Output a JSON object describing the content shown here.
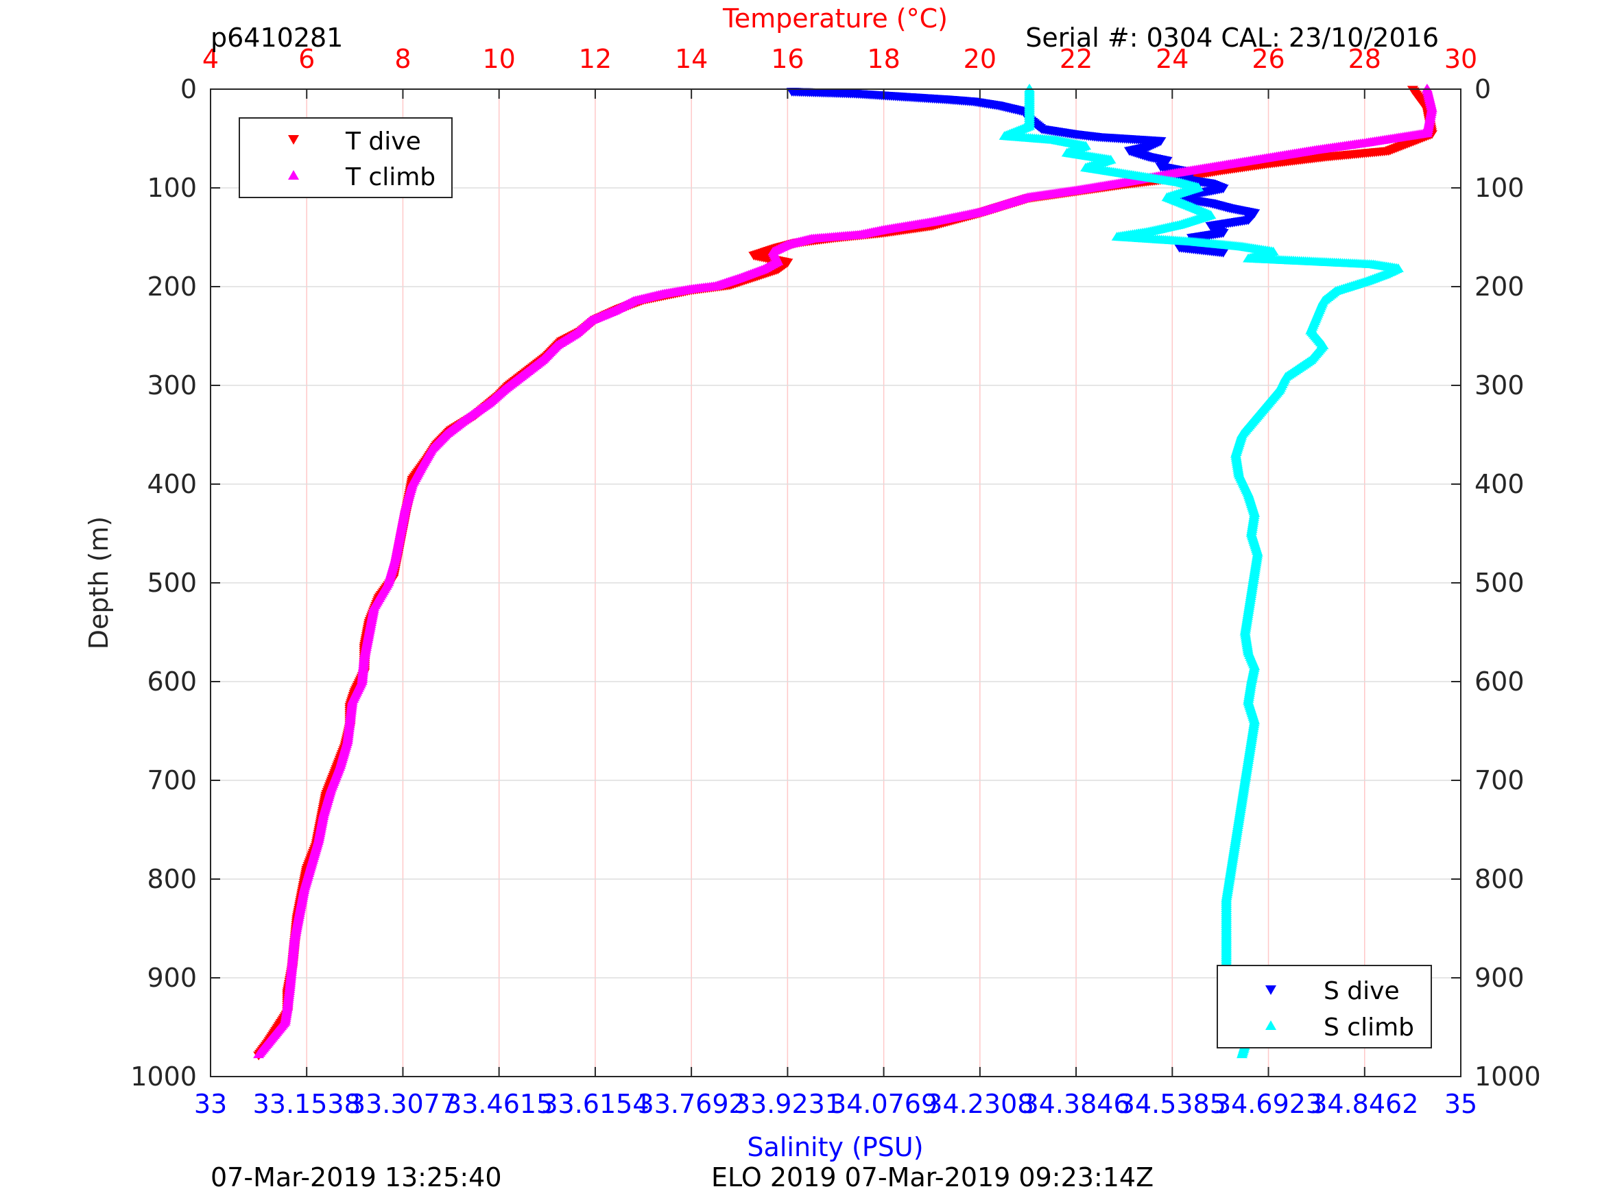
{
  "header": {
    "top_left": "p6410281",
    "top_right": "Serial #: 0304  CAL: 23/10/2016",
    "bottom_left": "07-Mar-2019 13:25:40",
    "bottom_center": "ELO 2019 07-Mar-2019 09:23:14Z"
  },
  "colors": {
    "t_dive": "#ff0000",
    "t_climb": "#ff00ff",
    "s_dive": "#0000ff",
    "s_climb": "#00ffff",
    "temp_axis": "#ff0000",
    "sal_axis": "#0000ff",
    "grid_temp": "#ffc8c8",
    "grid_depth": "#dddddd"
  },
  "chart_data": {
    "type": "scatter",
    "y_axis": {
      "label": "Depth (m)",
      "range": [
        0,
        1000
      ],
      "reversed": true,
      "ticks": [
        "0",
        "100",
        "200",
        "300",
        "400",
        "500",
        "600",
        "700",
        "800",
        "900",
        "1000"
      ]
    },
    "x_top": {
      "label": "Temperature (°C)",
      "range": [
        4,
        30
      ],
      "ticks": [
        "4",
        "6",
        "8",
        "10",
        "12",
        "14",
        "16",
        "18",
        "20",
        "22",
        "24",
        "26",
        "28",
        "30"
      ]
    },
    "x_bottom": {
      "label": "Salinity (PSU)",
      "range": [
        33,
        35
      ],
      "ticks": [
        "33",
        "33.1538",
        "33.3077",
        "33.4615",
        "33.6154",
        "33.7692",
        "33.9231",
        "34.0769",
        "34.2308",
        "34.3846",
        "34.5385",
        "34.6923",
        "34.8462",
        "35"
      ]
    },
    "grid": "on",
    "legend_temp": {
      "placement": "top-left",
      "entries": [
        {
          "label": "T dive",
          "marker": "triangle-down"
        },
        {
          "label": "T climb",
          "marker": "triangle-up"
        }
      ]
    },
    "legend_sal": {
      "placement": "bottom-right",
      "entries": [
        {
          "label": "S dive",
          "marker": "triangle-down"
        },
        {
          "label": "S climb",
          "marker": "triangle-up"
        }
      ]
    },
    "series": [
      {
        "name": "T dive",
        "axis": "temperature",
        "points": [
          [
            29.0,
            0
          ],
          [
            29.3,
            20
          ],
          [
            29.4,
            45
          ],
          [
            28.5,
            62
          ],
          [
            27.2,
            68
          ],
          [
            26.0,
            75
          ],
          [
            25.0,
            82
          ],
          [
            24.0,
            90
          ],
          [
            23.0,
            96
          ],
          [
            22.0,
            103
          ],
          [
            21.0,
            110
          ],
          [
            20.0,
            125
          ],
          [
            19.0,
            138
          ],
          [
            18.0,
            145
          ],
          [
            17.0,
            150
          ],
          [
            16.2,
            155
          ],
          [
            15.8,
            160
          ],
          [
            15.3,
            168
          ],
          [
            16.0,
            175
          ],
          [
            15.8,
            182
          ],
          [
            15.3,
            190
          ],
          [
            14.8,
            198
          ],
          [
            14.0,
            203
          ],
          [
            13.5,
            208
          ],
          [
            13.0,
            213
          ],
          [
            12.5,
            222
          ],
          [
            12.0,
            233
          ],
          [
            11.7,
            245
          ],
          [
            11.3,
            255
          ],
          [
            11.0,
            270
          ],
          [
            10.6,
            285
          ],
          [
            10.2,
            300
          ],
          [
            10.0,
            310
          ],
          [
            9.5,
            330
          ],
          [
            9.0,
            345
          ],
          [
            8.7,
            360
          ],
          [
            8.5,
            375
          ],
          [
            8.2,
            395
          ],
          [
            8.1,
            420
          ],
          [
            8.0,
            445
          ],
          [
            7.9,
            470
          ],
          [
            7.8,
            495
          ],
          [
            7.5,
            515
          ],
          [
            7.3,
            540
          ],
          [
            7.2,
            565
          ],
          [
            7.2,
            590
          ],
          [
            7.0,
            610
          ],
          [
            6.9,
            625
          ],
          [
            6.9,
            645
          ],
          [
            6.8,
            665
          ],
          [
            6.6,
            690
          ],
          [
            6.4,
            715
          ],
          [
            6.3,
            740
          ],
          [
            6.2,
            765
          ],
          [
            6.0,
            790
          ],
          [
            5.9,
            815
          ],
          [
            5.8,
            840
          ],
          [
            5.75,
            865
          ],
          [
            5.7,
            890
          ],
          [
            5.6,
            915
          ],
          [
            5.6,
            935
          ],
          [
            5.4,
            950
          ],
          [
            5.2,
            965
          ],
          [
            5.0,
            978
          ]
        ]
      },
      {
        "name": "T climb",
        "axis": "temperature",
        "points": [
          [
            29.3,
            0
          ],
          [
            29.4,
            20
          ],
          [
            29.3,
            45
          ],
          [
            28.0,
            55
          ],
          [
            27.0,
            62
          ],
          [
            26.0,
            70
          ],
          [
            25.0,
            78
          ],
          [
            24.0,
            86
          ],
          [
            23.0,
            95
          ],
          [
            22.0,
            103
          ],
          [
            21.0,
            110
          ],
          [
            20.0,
            125
          ],
          [
            19.0,
            135
          ],
          [
            18.0,
            143
          ],
          [
            17.5,
            148
          ],
          [
            16.5,
            152
          ],
          [
            16.0,
            158
          ],
          [
            15.7,
            165
          ],
          [
            15.8,
            175
          ],
          [
            15.5,
            183
          ],
          [
            15.0,
            192
          ],
          [
            14.5,
            200
          ],
          [
            14.0,
            203
          ],
          [
            13.4,
            208
          ],
          [
            12.8,
            215
          ],
          [
            12.4,
            225
          ],
          [
            11.9,
            235
          ],
          [
            11.6,
            248
          ],
          [
            11.2,
            260
          ],
          [
            10.9,
            275
          ],
          [
            10.5,
            290
          ],
          [
            10.1,
            305
          ],
          [
            9.8,
            318
          ],
          [
            9.3,
            335
          ],
          [
            8.9,
            350
          ],
          [
            8.6,
            365
          ],
          [
            8.4,
            382
          ],
          [
            8.2,
            400
          ],
          [
            8.05,
            425
          ],
          [
            7.95,
            450
          ],
          [
            7.85,
            475
          ],
          [
            7.7,
            500
          ],
          [
            7.4,
            525
          ],
          [
            7.3,
            550
          ],
          [
            7.2,
            575
          ],
          [
            7.15,
            600
          ],
          [
            6.95,
            620
          ],
          [
            6.9,
            640
          ],
          [
            6.85,
            660
          ],
          [
            6.7,
            685
          ],
          [
            6.5,
            710
          ],
          [
            6.35,
            735
          ],
          [
            6.25,
            760
          ],
          [
            6.1,
            785
          ],
          [
            5.95,
            810
          ],
          [
            5.85,
            835
          ],
          [
            5.75,
            860
          ],
          [
            5.7,
            885
          ],
          [
            5.65,
            910
          ],
          [
            5.6,
            930
          ],
          [
            5.55,
            945
          ],
          [
            5.3,
            960
          ],
          [
            5.1,
            972
          ],
          [
            5.0,
            978
          ]
        ]
      },
      {
        "name": "S dive",
        "axis": "salinity",
        "points": [
          [
            33.93,
            2
          ],
          [
            33.98,
            3
          ],
          [
            34.03,
            4
          ],
          [
            34.08,
            6
          ],
          [
            34.13,
            8
          ],
          [
            34.18,
            10
          ],
          [
            34.22,
            12
          ],
          [
            34.26,
            16
          ],
          [
            34.3,
            22
          ],
          [
            34.31,
            30
          ],
          [
            34.33,
            40
          ],
          [
            34.38,
            45
          ],
          [
            34.42,
            48
          ],
          [
            34.52,
            52
          ],
          [
            34.5,
            58
          ],
          [
            34.47,
            62
          ],
          [
            34.5,
            68
          ],
          [
            34.53,
            72
          ],
          [
            34.52,
            78
          ],
          [
            34.57,
            84
          ],
          [
            34.55,
            90
          ],
          [
            34.6,
            95
          ],
          [
            34.62,
            100
          ],
          [
            34.58,
            105
          ],
          [
            34.55,
            110
          ],
          [
            34.6,
            115
          ],
          [
            34.63,
            120
          ],
          [
            34.67,
            125
          ],
          [
            34.66,
            132
          ],
          [
            34.6,
            138
          ],
          [
            34.62,
            145
          ],
          [
            34.57,
            150
          ],
          [
            34.59,
            155
          ],
          [
            34.55,
            160
          ],
          [
            34.62,
            165
          ]
        ]
      },
      {
        "name": "S climb",
        "axis": "salinity",
        "points": [
          [
            34.31,
            0
          ],
          [
            34.31,
            20
          ],
          [
            34.31,
            38
          ],
          [
            34.27,
            48
          ],
          [
            34.35,
            52
          ],
          [
            34.4,
            58
          ],
          [
            34.37,
            65
          ],
          [
            34.44,
            72
          ],
          [
            34.4,
            80
          ],
          [
            34.48,
            88
          ],
          [
            34.55,
            95
          ],
          [
            34.58,
            100
          ],
          [
            34.53,
            110
          ],
          [
            34.57,
            120
          ],
          [
            34.6,
            128
          ],
          [
            34.55,
            138
          ],
          [
            34.5,
            145
          ],
          [
            34.45,
            150
          ],
          [
            34.57,
            155
          ],
          [
            34.65,
            160
          ],
          [
            34.7,
            165
          ],
          [
            34.66,
            172
          ],
          [
            34.86,
            178
          ],
          [
            34.9,
            182
          ],
          [
            34.88,
            188
          ],
          [
            34.85,
            195
          ],
          [
            34.8,
            205
          ],
          [
            34.78,
            215
          ],
          [
            34.77,
            230
          ],
          [
            34.76,
            245
          ],
          [
            34.78,
            260
          ],
          [
            34.76,
            275
          ],
          [
            34.72,
            292
          ],
          [
            34.71,
            305
          ],
          [
            34.69,
            320
          ],
          [
            34.67,
            335
          ],
          [
            34.65,
            350
          ],
          [
            34.64,
            370
          ],
          [
            34.645,
            390
          ],
          [
            34.66,
            410
          ],
          [
            34.67,
            430
          ],
          [
            34.665,
            450
          ],
          [
            34.675,
            470
          ],
          [
            34.67,
            490
          ],
          [
            34.665,
            510
          ],
          [
            34.66,
            530
          ],
          [
            34.655,
            550
          ],
          [
            34.66,
            570
          ],
          [
            34.67,
            585
          ],
          [
            34.665,
            600
          ],
          [
            34.66,
            620
          ],
          [
            34.67,
            640
          ],
          [
            34.665,
            660
          ],
          [
            34.66,
            680
          ],
          [
            34.655,
            700
          ],
          [
            34.65,
            720
          ],
          [
            34.645,
            740
          ],
          [
            34.64,
            760
          ],
          [
            34.635,
            780
          ],
          [
            34.63,
            800
          ],
          [
            34.625,
            820
          ],
          [
            34.625,
            840
          ],
          [
            34.625,
            860
          ],
          [
            34.625,
            880
          ],
          [
            34.625,
            900
          ],
          [
            34.63,
            920
          ],
          [
            34.65,
            940
          ],
          [
            34.66,
            955
          ],
          [
            34.655,
            968
          ],
          [
            34.65,
            978
          ]
        ]
      }
    ]
  }
}
